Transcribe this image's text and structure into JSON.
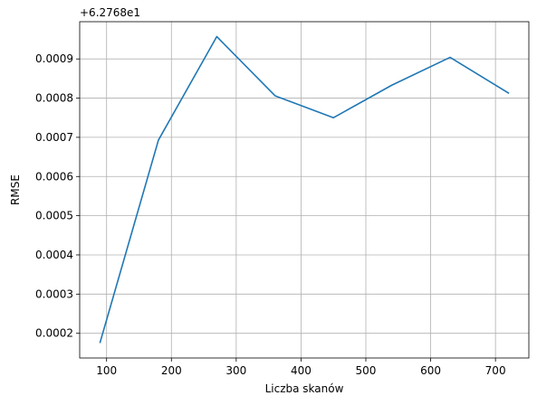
{
  "chart_data": {
    "type": "line",
    "title": "",
    "xlabel": "Liczba skanów",
    "ylabel": "RMSE",
    "offset_label": "+6.2768e1",
    "xlim": [
      58.5,
      751.5
    ],
    "ylim": [
      0.000137,
      0.000995
    ],
    "x_ticks": [
      100,
      200,
      300,
      400,
      500,
      600,
      700
    ],
    "x_tick_labels": [
      "100",
      "200",
      "300",
      "400",
      "500",
      "600",
      "700"
    ],
    "y_ticks": [
      0.0002,
      0.0003,
      0.0004,
      0.0005,
      0.0006,
      0.0007,
      0.0008,
      0.0009
    ],
    "y_tick_labels": [
      "0.0002",
      "0.0003",
      "0.0004",
      "0.0005",
      "0.0006",
      "0.0007",
      "0.0008",
      "0.0009"
    ],
    "grid": true,
    "series": [
      {
        "color": "#1f77b4",
        "x": [
          90,
          180,
          270,
          360,
          450,
          540,
          630,
          720
        ],
        "y": [
          0.000177,
          0.000693,
          0.000957,
          0.000806,
          0.00075,
          0.000833,
          0.000904,
          0.000813
        ]
      }
    ]
  }
}
